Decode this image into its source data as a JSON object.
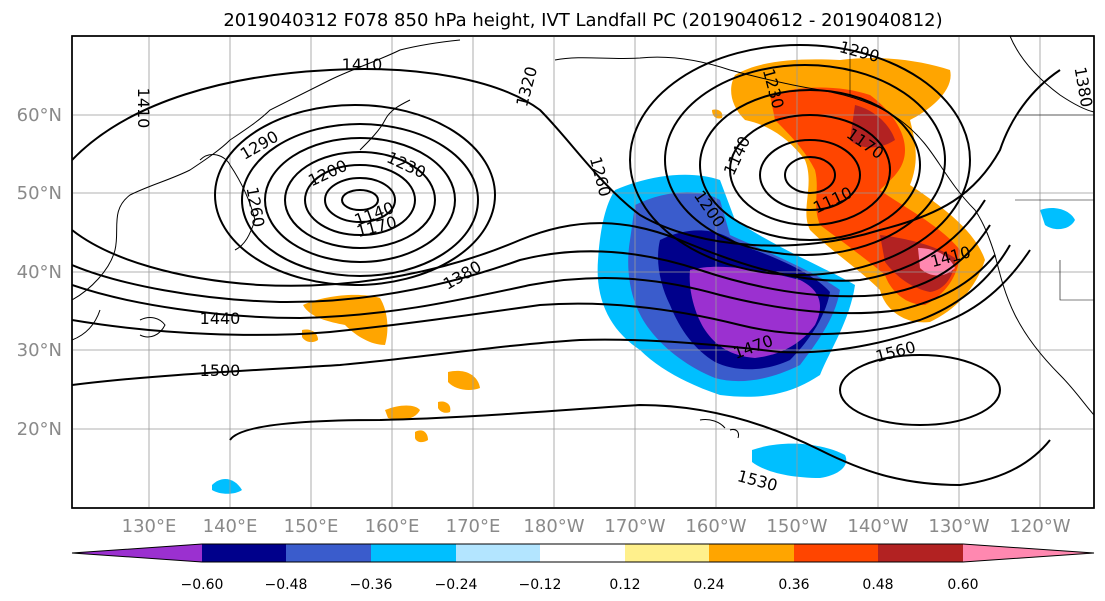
{
  "title": "2019040312 F078 850 hPa height, IVT Landfall PC (2019040612 - 2019040812)",
  "map": {
    "lon_ticks": [
      "130°E",
      "140°E",
      "150°E",
      "160°E",
      "170°E",
      "180°W",
      "170°W",
      "160°W",
      "150°W",
      "140°W",
      "130°W",
      "120°W"
    ],
    "lat_ticks": [
      "60°N",
      "50°N",
      "40°N",
      "30°N",
      "20°N"
    ],
    "contour_labels": [
      "1410",
      "1410",
      "1290",
      "1260",
      "1200",
      "1230",
      "1140",
      "1170",
      "1380",
      "1440",
      "1500",
      "1530",
      "1560",
      "1470",
      "1410",
      "1380",
      "1290",
      "1230",
      "1170",
      "1110",
      "1140",
      "1200",
      "1260",
      "1320"
    ]
  },
  "colorbar": {
    "ticks": [
      "−0.60",
      "−0.48",
      "−0.36",
      "−0.24",
      "−0.12",
      "0.12",
      "0.24",
      "0.36",
      "0.48",
      "0.60"
    ],
    "colors": [
      "#9b30d0",
      "#00008b",
      "#3a5ccc",
      "#00bfff",
      "#b3e5ff",
      "#ffffff",
      "#fff08c",
      "#ffa500",
      "#ff4500",
      "#b22222",
      "#ff88b0"
    ]
  }
}
